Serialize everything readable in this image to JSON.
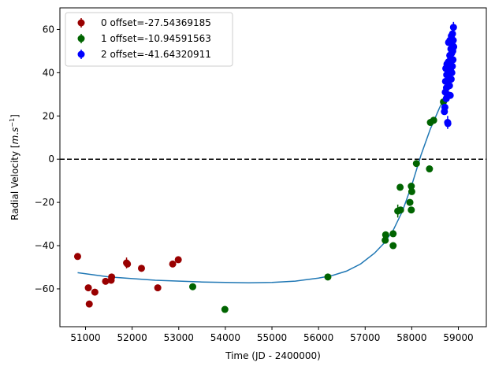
{
  "chart_data": {
    "type": "scatter",
    "xlabel": "Time (JD - 2400000)",
    "ylabel_prefix": "Radial Velocity [",
    "ylabel_unit_m": "m",
    "ylabel_unit_s": "s",
    "ylabel_unit_exp": "−1",
    "ylabel_suffix": "]",
    "xlim": [
      50450,
      59600
    ],
    "ylim": [
      -77.5,
      70
    ],
    "x_ticks": [
      51000,
      52000,
      53000,
      54000,
      55000,
      56000,
      57000,
      58000,
      59000
    ],
    "y_ticks": [
      -60,
      -40,
      -20,
      0,
      20,
      40,
      60
    ],
    "grid": false,
    "legend_position": "top-left",
    "reference_line": {
      "y": 0,
      "style": "dashed",
      "color": "#000000"
    },
    "series": [
      {
        "name": "0 offset=-27.54369185",
        "color": "#990000",
        "points": [
          {
            "x": 50830,
            "y": -45,
            "err": 1.5
          },
          {
            "x": 51060,
            "y": -59.5,
            "err": 1.5
          },
          {
            "x": 51080,
            "y": -67,
            "err": 1.5
          },
          {
            "x": 51200,
            "y": -61.5,
            "err": 1.5
          },
          {
            "x": 51430,
            "y": -56.5,
            "err": 1.5
          },
          {
            "x": 51550,
            "y": -56,
            "err": 1.5
          },
          {
            "x": 51560,
            "y": -54.5,
            "err": 1.5
          },
          {
            "x": 51880,
            "y": -48,
            "err": 2.5
          },
          {
            "x": 51900,
            "y": -48.5,
            "err": 1.5
          },
          {
            "x": 52200,
            "y": -50.5,
            "err": 1.5
          },
          {
            "x": 52550,
            "y": -59.5,
            "err": 1.5
          },
          {
            "x": 52870,
            "y": -48.5,
            "err": 1.5
          },
          {
            "x": 52990,
            "y": -46.5,
            "err": 1.5
          }
        ]
      },
      {
        "name": "1 offset=-10.94591563",
        "color": "#006400",
        "points": [
          {
            "x": 53300,
            "y": -59,
            "err": 1.5
          },
          {
            "x": 53990,
            "y": -69.5,
            "err": 1.5
          },
          {
            "x": 56200,
            "y": -54.5,
            "err": 1.5
          },
          {
            "x": 57430,
            "y": -37.5,
            "err": 1.5
          },
          {
            "x": 57440,
            "y": -35,
            "err": 1.5
          },
          {
            "x": 57600,
            "y": -34.5,
            "err": 1.5
          },
          {
            "x": 57600,
            "y": -40,
            "err": 1.5
          },
          {
            "x": 57700,
            "y": -24,
            "err": 3
          },
          {
            "x": 57750,
            "y": -13,
            "err": 1.5
          },
          {
            "x": 57760,
            "y": -23.5,
            "err": 1.5
          },
          {
            "x": 57960,
            "y": -20,
            "err": 1.5
          },
          {
            "x": 57990,
            "y": -23.5,
            "err": 1.5
          },
          {
            "x": 57990,
            "y": -12.5,
            "err": 1.5
          },
          {
            "x": 58000,
            "y": -15,
            "err": 1.5
          },
          {
            "x": 58100,
            "y": -2,
            "err": 1.5
          },
          {
            "x": 58380,
            "y": -4.5,
            "err": 1.5
          },
          {
            "x": 58400,
            "y": 17,
            "err": 1.5
          },
          {
            "x": 58470,
            "y": 18,
            "err": 1.5
          },
          {
            "x": 58680,
            "y": 26.5,
            "err": 1.5
          }
        ]
      },
      {
        "name": "2 offset=-41.64320911",
        "color": "#0000ff",
        "points": [
          {
            "x": 58700,
            "y": 22,
            "err": 1.5
          },
          {
            "x": 58710,
            "y": 24,
            "err": 1.5
          },
          {
            "x": 58720,
            "y": 31,
            "err": 1.5
          },
          {
            "x": 58725,
            "y": 36,
            "err": 1.5
          },
          {
            "x": 58730,
            "y": 42,
            "err": 1.5
          },
          {
            "x": 58740,
            "y": 28,
            "err": 1.5
          },
          {
            "x": 58745,
            "y": 33,
            "err": 1.5
          },
          {
            "x": 58750,
            "y": 39,
            "err": 1.5
          },
          {
            "x": 58755,
            "y": 44,
            "err": 1.5
          },
          {
            "x": 58760,
            "y": 30,
            "err": 1.5
          },
          {
            "x": 58765,
            "y": 36,
            "err": 1.5
          },
          {
            "x": 58770,
            "y": 17,
            "err": 3
          },
          {
            "x": 58775,
            "y": 16.5,
            "err": 1.5
          },
          {
            "x": 58780,
            "y": 40,
            "err": 1.5
          },
          {
            "x": 58785,
            "y": 45,
            "err": 1.5
          },
          {
            "x": 58790,
            "y": 54,
            "err": 1.5
          },
          {
            "x": 58800,
            "y": 38,
            "err": 1.5
          },
          {
            "x": 58805,
            "y": 43,
            "err": 1.5
          },
          {
            "x": 58810,
            "y": 34,
            "err": 1.5
          },
          {
            "x": 58815,
            "y": 48,
            "err": 1.5
          },
          {
            "x": 58820,
            "y": 55,
            "err": 1.5
          },
          {
            "x": 58825,
            "y": 29.5,
            "err": 1.5
          },
          {
            "x": 58830,
            "y": 46,
            "err": 1.5
          },
          {
            "x": 58835,
            "y": 42,
            "err": 1.5
          },
          {
            "x": 58840,
            "y": 51,
            "err": 1.5
          },
          {
            "x": 58845,
            "y": 37,
            "err": 1.5
          },
          {
            "x": 58850,
            "y": 57,
            "err": 1.5
          },
          {
            "x": 58855,
            "y": 49,
            "err": 1.5
          },
          {
            "x": 58860,
            "y": 40,
            "err": 1.5
          },
          {
            "x": 58865,
            "y": 53,
            "err": 1.5
          },
          {
            "x": 58870,
            "y": 43,
            "err": 1.5
          },
          {
            "x": 58875,
            "y": 58,
            "err": 1.5
          },
          {
            "x": 58880,
            "y": 50,
            "err": 1.5
          },
          {
            "x": 58885,
            "y": 46,
            "err": 1.5
          },
          {
            "x": 58890,
            "y": 55,
            "err": 1.5
          },
          {
            "x": 58895,
            "y": 61,
            "err": 2.5
          },
          {
            "x": 58900,
            "y": 52,
            "err": 1.5
          }
        ]
      }
    ],
    "fit_curve": {
      "color": "#1f77b4",
      "points": [
        [
          50830,
          -52.5
        ],
        [
          51500,
          -54.5
        ],
        [
          52500,
          -56.0
        ],
        [
          53500,
          -56.8
        ],
        [
          54500,
          -57.2
        ],
        [
          55000,
          -57.0
        ],
        [
          55500,
          -56.4
        ],
        [
          56000,
          -55.0
        ],
        [
          56300,
          -53.8
        ],
        [
          56600,
          -51.8
        ],
        [
          56900,
          -48.5
        ],
        [
          57200,
          -43.5
        ],
        [
          57400,
          -39.0
        ],
        [
          57600,
          -33.0
        ],
        [
          57800,
          -24.0
        ],
        [
          58000,
          -12.0
        ],
        [
          58200,
          2.0
        ],
        [
          58400,
          14.0
        ],
        [
          58600,
          24.0
        ],
        [
          58700,
          28.0
        ],
        [
          58750,
          30.0
        ]
      ]
    }
  }
}
